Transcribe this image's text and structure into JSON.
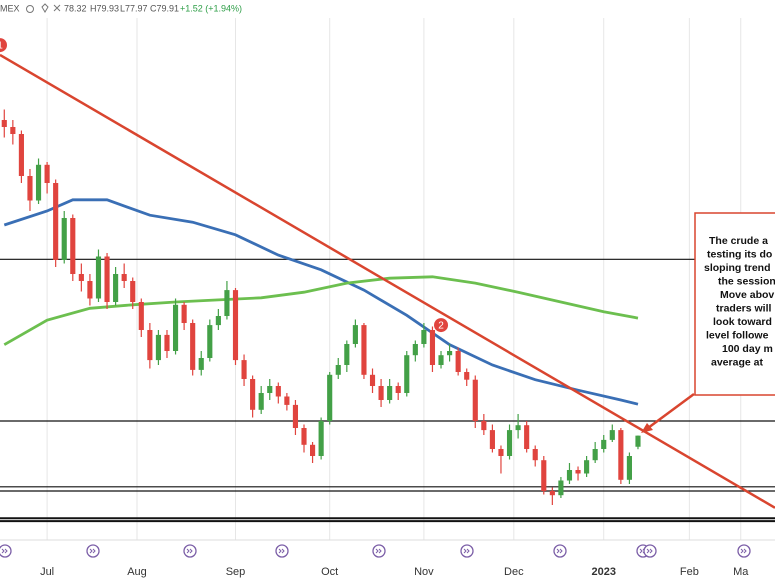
{
  "header": {
    "symbol": "MEX",
    "open": "78.32",
    "high": "H79.93",
    "low": "L77.97",
    "close": "C79.91",
    "change": "+1.52 (+1.94%)"
  },
  "chart_data": {
    "type": "candlestick",
    "xlim": [
      -0.5,
      90
    ],
    "ylim": [
      65,
      140
    ],
    "xticks": [
      {
        "value": 5,
        "label": "Jul"
      },
      {
        "value": 15.5,
        "label": "Aug"
      },
      {
        "value": 27,
        "label": "Sep"
      },
      {
        "value": 38,
        "label": "Oct"
      },
      {
        "value": 49,
        "label": "Nov"
      },
      {
        "value": 59.5,
        "label": "Dec"
      },
      {
        "value": 70,
        "label": "2023"
      },
      {
        "value": 80,
        "label": "Feb"
      },
      {
        "value": 86,
        "label": "Ma"
      }
    ],
    "up_color": "#43a047",
    "down_color": "#e0443e",
    "ohlc": [
      [
        125,
        126.5,
        122.5,
        124
      ],
      [
        124,
        125,
        121.5,
        123
      ],
      [
        123,
        123.5,
        116,
        117
      ],
      [
        117,
        118,
        112,
        113.5
      ],
      [
        113.5,
        119.5,
        113,
        118.6
      ],
      [
        118.6,
        119,
        114.5,
        116
      ],
      [
        116,
        116.5,
        104,
        105
      ],
      [
        105,
        112,
        104.5,
        111
      ],
      [
        111,
        111.5,
        102,
        103
      ],
      [
        103,
        104.5,
        100.5,
        102
      ],
      [
        102,
        103,
        98.5,
        99.5
      ],
      [
        99.5,
        106.5,
        99,
        105.5
      ],
      [
        105.5,
        106,
        98,
        99
      ],
      [
        99,
        104,
        98.5,
        103
      ],
      [
        103,
        104.5,
        101,
        102
      ],
      [
        102,
        102.5,
        98,
        99
      ],
      [
        99,
        99.5,
        94,
        95
      ],
      [
        95,
        96,
        89.5,
        90.7
      ],
      [
        90.7,
        95,
        90,
        94.3
      ],
      [
        94.3,
        95,
        91,
        92
      ],
      [
        92,
        99.5,
        91.5,
        98.6
      ],
      [
        98.6,
        99,
        95,
        96
      ],
      [
        96,
        96.5,
        88.5,
        89.3
      ],
      [
        89.3,
        92,
        88.5,
        91
      ],
      [
        91,
        96.5,
        90.5,
        95.7
      ],
      [
        95.7,
        98,
        95,
        97
      ],
      [
        97,
        102,
        96.5,
        100.7
      ],
      [
        100.7,
        101,
        90,
        90.7
      ],
      [
        90.7,
        91.5,
        87,
        88
      ],
      [
        88,
        88.5,
        82.5,
        83.6
      ],
      [
        83.6,
        87,
        83,
        86
      ],
      [
        86,
        88,
        85,
        87
      ],
      [
        87,
        87.5,
        84.5,
        85.5
      ],
      [
        85.5,
        86,
        83.5,
        84.3
      ],
      [
        84.3,
        85,
        80,
        81
      ],
      [
        81,
        81.5,
        77.5,
        78.6
      ],
      [
        78.6,
        79,
        76,
        77
      ],
      [
        77,
        82.5,
        76.5,
        82
      ],
      [
        82,
        89,
        81.5,
        88.6
      ],
      [
        88.6,
        91,
        88,
        90
      ],
      [
        90,
        93.5,
        89,
        93
      ],
      [
        93,
        96.5,
        92.5,
        95.7
      ],
      [
        95.7,
        96,
        88,
        88.6
      ],
      [
        88.6,
        89.5,
        86,
        87
      ],
      [
        87,
        88,
        84,
        85
      ],
      [
        85,
        88,
        84.5,
        87
      ],
      [
        87,
        87.5,
        85,
        86
      ],
      [
        86,
        92,
        85.5,
        91.4
      ],
      [
        91.4,
        93.5,
        90.5,
        93
      ],
      [
        93,
        96,
        92.5,
        95
      ],
      [
        95,
        95.5,
        89,
        90
      ],
      [
        90,
        92,
        89.5,
        91.4
      ],
      [
        91.4,
        93,
        90.5,
        92
      ],
      [
        92,
        92.5,
        88.5,
        89
      ],
      [
        89,
        89.5,
        87,
        87.9
      ],
      [
        87.9,
        88.5,
        81,
        82
      ],
      [
        82,
        83,
        80,
        80.7
      ],
      [
        80.7,
        81.5,
        77.5,
        78
      ],
      [
        78,
        78.5,
        74.5,
        77
      ],
      [
        77,
        81.5,
        76.5,
        80.7
      ],
      [
        80.7,
        83,
        79.5,
        81.4
      ],
      [
        81.4,
        82,
        77.5,
        78
      ],
      [
        78,
        78.5,
        75.5,
        76.4
      ],
      [
        76.4,
        77,
        71.5,
        72
      ],
      [
        72,
        72.5,
        70,
        71.4
      ],
      [
        71.4,
        74,
        71,
        73.5
      ],
      [
        73.5,
        76,
        73,
        75
      ],
      [
        75,
        75.5,
        73.5,
        74.5
      ],
      [
        74.5,
        77,
        74,
        76.4
      ],
      [
        76.4,
        79,
        76,
        78
      ],
      [
        78,
        80,
        77.5,
        79.3
      ],
      [
        79.3,
        81.5,
        79,
        80.7
      ],
      [
        80.7,
        81,
        73,
        73.6
      ],
      [
        73.6,
        77.5,
        73,
        77
      ],
      [
        78.32,
        79.93,
        77.97,
        79.91
      ]
    ],
    "series": [
      {
        "color": "#3a6fb5",
        "x": [
          0,
          5,
          8,
          12,
          17,
          22,
          27,
          32,
          37,
          42,
          47,
          52,
          57,
          62,
          67,
          72,
          74
        ],
        "values": [
          110,
          112,
          113.6,
          113.6,
          111.4,
          110.4,
          108.6,
          105.7,
          103.6,
          100.7,
          97.1,
          92.9,
          90,
          87.9,
          86.4,
          85,
          84.4
        ]
      },
      {
        "color": "#6cbf4f",
        "x": [
          0,
          5,
          10,
          15,
          20,
          25,
          30,
          35,
          40,
          45,
          50,
          55,
          60,
          65,
          70,
          74
        ],
        "values": [
          92.9,
          96.4,
          98.1,
          98.6,
          99,
          99.3,
          99.6,
          100.4,
          101.7,
          102.4,
          102.6,
          101.7,
          100.4,
          99,
          97.6,
          96.7
        ]
      }
    ],
    "trendline": {
      "color": "#d9452f",
      "x": [
        -0.5,
        90
      ],
      "values": [
        134.3,
        69.6
      ]
    },
    "levels": [
      105.1,
      82,
      72.6,
      72,
      68.1,
      67.7
    ],
    "markers": [
      {
        "label": "2",
        "x": 51,
        "y": 95.7
      },
      {
        "label": "1",
        "x": -0.5,
        "y": 135.7
      }
    ],
    "annotation": [
      "The crude a",
      "testing its do",
      "sloping trend",
      "the session",
      "Move abov",
      "traders will",
      "look toward",
      "level followe",
      "100 day m",
      "average at"
    ]
  }
}
